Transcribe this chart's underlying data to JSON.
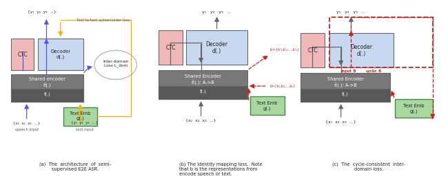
{
  "bg_color": "#ffffff",
  "fig_width": 6.4,
  "fig_height": 2.4,
  "ctc_color": "#f0b8b8",
  "decoder_color": "#c8d8f0",
  "encoder_top_color": "#787878",
  "encoder_bot_color": "#585858",
  "text_emb_color": "#a8d8a0",
  "text_emb_edge": "#448844",
  "arrow_blue": "#5555ee",
  "arrow_orange": "#ffaa00",
  "arrow_gray": "#666666",
  "arrow_red": "#cc2222",
  "ellipse_color": "#aaaaaa",
  "caption_color": "#222222",
  "panel_a_caption": "(a)  The  architecture  of  semi-\nsupervised E2E ASR.",
  "panel_b_caption": "(b) The identity mapping loss.  Note\nthat b is the representations from\nencode speech or text.",
  "panel_c_caption": "(c)  The  cycle-consistent  inter-\ndomain loss."
}
